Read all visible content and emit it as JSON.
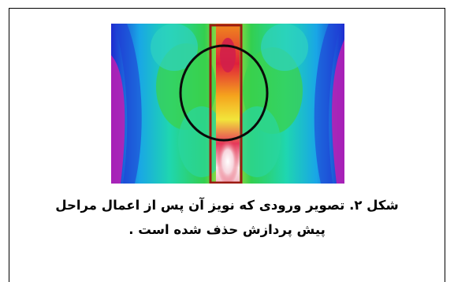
{
  "figure": {
    "image_description_icon": "thermal-image",
    "colors": {
      "background_cold": "#1f2fd6",
      "cyan": "#17d9d0",
      "green": "#2fd44a",
      "yellow": "#f2e53a",
      "orange": "#f08a1c",
      "red": "#e0203a",
      "hot": "#fbe9ec",
      "magenta": "#c01fb3",
      "roi_rectangle": "#9b1b12",
      "roi_circle": "#0a0a0a"
    }
  },
  "caption": {
    "line1": "شکل ۲. تصویر ورودی که نویز آن پس از اعمال مراحل",
    "line2": "پیش پردازش حذف شده است ."
  }
}
